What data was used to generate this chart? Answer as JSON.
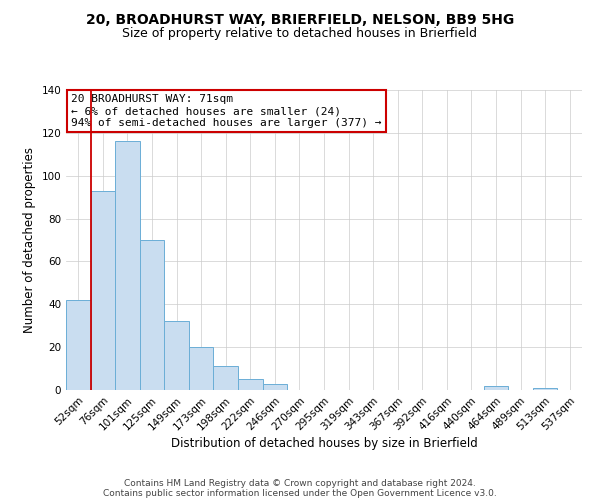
{
  "title": "20, BROADHURST WAY, BRIERFIELD, NELSON, BB9 5HG",
  "subtitle": "Size of property relative to detached houses in Brierfield",
  "xlabel": "Distribution of detached houses by size in Brierfield",
  "ylabel": "Number of detached properties",
  "categories": [
    "52sqm",
    "76sqm",
    "101sqm",
    "125sqm",
    "149sqm",
    "173sqm",
    "198sqm",
    "222sqm",
    "246sqm",
    "270sqm",
    "295sqm",
    "319sqm",
    "343sqm",
    "367sqm",
    "392sqm",
    "416sqm",
    "440sqm",
    "464sqm",
    "489sqm",
    "513sqm",
    "537sqm"
  ],
  "values": [
    42,
    93,
    116,
    70,
    32,
    20,
    11,
    5,
    3,
    0,
    0,
    0,
    0,
    0,
    0,
    0,
    0,
    2,
    0,
    1,
    0
  ],
  "bar_color": "#c9ddf0",
  "bar_edge_color": "#6baed6",
  "annotation_title": "20 BROADHURST WAY: 71sqm",
  "annotation_line1": "← 6% of detached houses are smaller (24)",
  "annotation_line2": "94% of semi-detached houses are larger (377) →",
  "red_line_x": 0.5,
  "ylim": [
    0,
    140
  ],
  "yticks": [
    0,
    20,
    40,
    60,
    80,
    100,
    120,
    140
  ],
  "footer1": "Contains HM Land Registry data © Crown copyright and database right 2024.",
  "footer2": "Contains public sector information licensed under the Open Government Licence v3.0.",
  "bg_color": "#ffffff",
  "grid_color": "#cccccc",
  "annotation_box_color": "#ffffff",
  "annotation_box_edge": "#cc0000",
  "red_line_color": "#cc0000",
  "title_fontsize": 10,
  "subtitle_fontsize": 9,
  "axis_label_fontsize": 8.5,
  "tick_fontsize": 7.5,
  "annotation_fontsize": 8,
  "footer_fontsize": 6.5
}
